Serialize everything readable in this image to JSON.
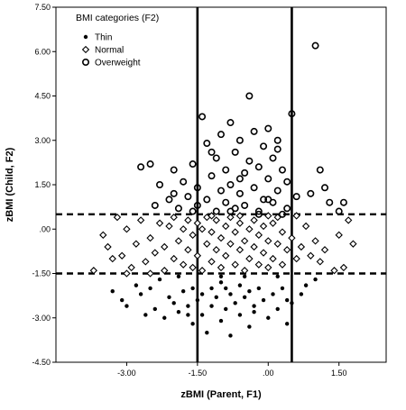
{
  "chart_data": {
    "type": "scatter",
    "xlabel": "zBMI (Parent, F1)",
    "ylabel": "zBMI (Child, F2)",
    "xlim": [
      -4.5,
      2.5
    ],
    "ylim": [
      -4.5,
      7.5
    ],
    "x_ticks": [
      "-3.00",
      "-1.50",
      ".00",
      "1.50"
    ],
    "y_ticks": [
      "-4.50",
      "-3.00",
      "-1.50",
      ".00",
      "1.50",
      "3.00",
      "4.50",
      "6.00",
      "7.50"
    ],
    "x_tick_values": [
      -3.0,
      -1.5,
      0.0,
      1.5
    ],
    "y_tick_values": [
      -4.5,
      -3.0,
      -1.5,
      0.0,
      1.5,
      3.0,
      4.5,
      6.0,
      7.5
    ],
    "grid": false,
    "legend": {
      "title": "BMI categories (F2)",
      "placement": "top-left"
    },
    "reference_lines": {
      "vertical_solid": [
        -1.5,
        0.5
      ],
      "horizontal_dashed": [
        0.5,
        -1.5
      ]
    },
    "series": [
      {
        "name": "Thin",
        "marker": "filled-dot",
        "points": [
          [
            -3.3,
            -2.1
          ],
          [
            -3.1,
            -2.4
          ],
          [
            -3.0,
            -2.6
          ],
          [
            -2.7,
            -2.2
          ],
          [
            -2.5,
            -2.0
          ],
          [
            -2.4,
            -2.7
          ],
          [
            -2.2,
            -3.0
          ],
          [
            -2.1,
            -2.3
          ],
          [
            -2.0,
            -2.5
          ],
          [
            -1.9,
            -2.8
          ],
          [
            -1.8,
            -2.1
          ],
          [
            -1.7,
            -2.6
          ],
          [
            -1.6,
            -2.0
          ],
          [
            -1.6,
            -3.2
          ],
          [
            -1.5,
            -2.4
          ],
          [
            -1.4,
            -2.9
          ],
          [
            -1.4,
            -2.2
          ],
          [
            -1.3,
            -3.5
          ],
          [
            -1.2,
            -2.6
          ],
          [
            -1.2,
            -2.0
          ],
          [
            -1.1,
            -2.3
          ],
          [
            -1.0,
            -3.1
          ],
          [
            -1.0,
            -1.8
          ],
          [
            -0.9,
            -2.7
          ],
          [
            -0.8,
            -2.2
          ],
          [
            -0.8,
            -3.6
          ],
          [
            -0.7,
            -2.5
          ],
          [
            -0.6,
            -1.9
          ],
          [
            -0.6,
            -2.9
          ],
          [
            -0.5,
            -2.3
          ],
          [
            -0.4,
            -2.1
          ],
          [
            -0.4,
            -3.3
          ],
          [
            -0.3,
            -2.6
          ],
          [
            -0.2,
            -2.0
          ],
          [
            -0.1,
            -2.4
          ],
          [
            0.0,
            -3.0
          ],
          [
            0.1,
            -2.2
          ],
          [
            0.2,
            -2.7
          ],
          [
            0.3,
            -2.0
          ],
          [
            0.4,
            -3.2
          ],
          [
            0.4,
            -2.4
          ],
          [
            0.5,
            -2.5
          ],
          [
            0.7,
            -2.2
          ],
          [
            0.8,
            -1.9
          ],
          [
            1.0,
            -1.7
          ],
          [
            -2.8,
            -1.9
          ],
          [
            -2.3,
            -1.7
          ],
          [
            -1.9,
            -1.6
          ],
          [
            -1.0,
            -1.6
          ],
          [
            -0.5,
            -1.6
          ],
          [
            0.2,
            -1.6
          ],
          [
            -1.7,
            -2.9
          ],
          [
            -0.9,
            -2.0
          ],
          [
            -0.3,
            -2.8
          ],
          [
            -2.6,
            -2.9
          ]
        ]
      },
      {
        "name": "Normal",
        "marker": "diamond",
        "points": [
          [
            -3.7,
            -1.4
          ],
          [
            -3.5,
            -0.2
          ],
          [
            -3.4,
            -0.6
          ],
          [
            -3.3,
            -1.0
          ],
          [
            -3.2,
            0.4
          ],
          [
            -3.1,
            -0.9
          ],
          [
            -3.0,
            0.0
          ],
          [
            -2.9,
            -1.3
          ],
          [
            -2.8,
            -0.5
          ],
          [
            -2.7,
            0.3
          ],
          [
            -2.6,
            -1.1
          ],
          [
            -2.5,
            -0.3
          ],
          [
            -2.4,
            -0.8
          ],
          [
            -2.3,
            0.2
          ],
          [
            -2.2,
            -1.4
          ],
          [
            -2.2,
            -0.6
          ],
          [
            -2.1,
            0.1
          ],
          [
            -2.0,
            -1.0
          ],
          [
            -2.0,
            0.4
          ],
          [
            -1.9,
            -0.4
          ],
          [
            -1.8,
            -1.2
          ],
          [
            -1.8,
            0.0
          ],
          [
            -1.7,
            -0.7
          ],
          [
            -1.7,
            0.3
          ],
          [
            -1.6,
            -1.3
          ],
          [
            -1.6,
            -0.2
          ],
          [
            -1.5,
            0.2
          ],
          [
            -1.5,
            -0.9
          ],
          [
            -1.4,
            -1.4
          ],
          [
            -1.4,
            0.0
          ],
          [
            -1.3,
            -0.5
          ],
          [
            -1.3,
            0.4
          ],
          [
            -1.2,
            -1.1
          ],
          [
            -1.2,
            -0.1
          ],
          [
            -1.1,
            -0.7
          ],
          [
            -1.1,
            0.3
          ],
          [
            -1.0,
            -1.3
          ],
          [
            -1.0,
            -0.3
          ],
          [
            -0.9,
            0.1
          ],
          [
            -0.9,
            -0.9
          ],
          [
            -0.8,
            -0.5
          ],
          [
            -0.8,
            0.4
          ],
          [
            -0.7,
            -1.2
          ],
          [
            -0.7,
            -0.1
          ],
          [
            -0.6,
            -0.7
          ],
          [
            -0.6,
            0.2
          ],
          [
            -0.5,
            -1.4
          ],
          [
            -0.5,
            -0.4
          ],
          [
            -0.4,
            0.0
          ],
          [
            -0.4,
            -1.0
          ],
          [
            -0.3,
            0.3
          ],
          [
            -0.3,
            -0.6
          ],
          [
            -0.2,
            -1.2
          ],
          [
            -0.2,
            -0.2
          ],
          [
            -0.1,
            0.1
          ],
          [
            -0.1,
            -0.8
          ],
          [
            0.0,
            -1.3
          ],
          [
            0.0,
            -0.4
          ],
          [
            0.1,
            0.2
          ],
          [
            0.1,
            -1.0
          ],
          [
            0.2,
            -0.5
          ],
          [
            0.2,
            0.4
          ],
          [
            0.3,
            -1.2
          ],
          [
            0.3,
            -0.1
          ],
          [
            0.4,
            -0.7
          ],
          [
            0.5,
            -0.3
          ],
          [
            0.6,
            -1.0
          ],
          [
            0.7,
            -0.6
          ],
          [
            0.8,
            0.1
          ],
          [
            0.9,
            -0.9
          ],
          [
            1.0,
            -0.4
          ],
          [
            1.1,
            -1.1
          ],
          [
            1.2,
            -0.7
          ],
          [
            1.4,
            -1.4
          ],
          [
            1.5,
            -0.2
          ],
          [
            1.6,
            -1.3
          ],
          [
            1.7,
            0.3
          ],
          [
            1.8,
            -0.5
          ],
          [
            -3.0,
            -1.5
          ],
          [
            -2.5,
            -1.5
          ],
          [
            -1.2,
            0.45
          ],
          [
            -0.6,
            0.45
          ],
          [
            0.0,
            0.45
          ],
          [
            0.6,
            0.45
          ]
        ]
      },
      {
        "name": "Overweight",
        "marker": "open-circle",
        "points": [
          [
            -2.7,
            2.1
          ],
          [
            -2.5,
            2.2
          ],
          [
            -2.3,
            1.5
          ],
          [
            -2.1,
            1.0
          ],
          [
            -2.0,
            2.0
          ],
          [
            -1.9,
            0.7
          ],
          [
            -1.8,
            1.6
          ],
          [
            -1.7,
            1.1
          ],
          [
            -1.6,
            2.2
          ],
          [
            -1.5,
            0.8
          ],
          [
            -1.5,
            1.4
          ],
          [
            -1.4,
            3.8
          ],
          [
            -1.3,
            2.9
          ],
          [
            -1.3,
            1.0
          ],
          [
            -1.2,
            1.8
          ],
          [
            -1.1,
            0.6
          ],
          [
            -1.1,
            2.4
          ],
          [
            -1.0,
            1.3
          ],
          [
            -1.0,
            3.2
          ],
          [
            -0.9,
            0.9
          ],
          [
            -0.9,
            2.0
          ],
          [
            -0.8,
            1.5
          ],
          [
            -0.8,
            3.6
          ],
          [
            -0.7,
            0.7
          ],
          [
            -0.7,
            2.6
          ],
          [
            -0.6,
            1.2
          ],
          [
            -0.6,
            3.0
          ],
          [
            -0.5,
            1.9
          ],
          [
            -0.5,
            0.8
          ],
          [
            -0.4,
            4.5
          ],
          [
            -0.4,
            2.3
          ],
          [
            -0.3,
            1.4
          ],
          [
            -0.3,
            3.3
          ],
          [
            -0.2,
            0.6
          ],
          [
            -0.2,
            2.1
          ],
          [
            -0.1,
            1.0
          ],
          [
            -0.1,
            2.8
          ],
          [
            0.0,
            1.7
          ],
          [
            0.0,
            3.4
          ],
          [
            0.1,
            0.9
          ],
          [
            0.1,
            2.4
          ],
          [
            0.2,
            1.3
          ],
          [
            0.2,
            3.0
          ],
          [
            0.3,
            2.0
          ],
          [
            0.4,
            0.7
          ],
          [
            0.4,
            1.6
          ],
          [
            0.5,
            3.9
          ],
          [
            0.6,
            1.1
          ],
          [
            0.9,
            1.2
          ],
          [
            1.0,
            6.2
          ],
          [
            1.1,
            2.0
          ],
          [
            1.2,
            1.4
          ],
          [
            1.3,
            0.9
          ],
          [
            1.5,
            0.6
          ],
          [
            1.6,
            0.9
          ],
          [
            -2.0,
            1.2
          ],
          [
            -1.6,
            0.6
          ],
          [
            -0.8,
            0.6
          ],
          [
            -0.2,
            0.5
          ],
          [
            0.3,
            0.5
          ],
          [
            -1.2,
            2.6
          ],
          [
            -0.6,
            1.7
          ],
          [
            0.2,
            2.7
          ],
          [
            -2.4,
            0.8
          ],
          [
            0.0,
            1.0
          ]
        ]
      }
    ]
  }
}
